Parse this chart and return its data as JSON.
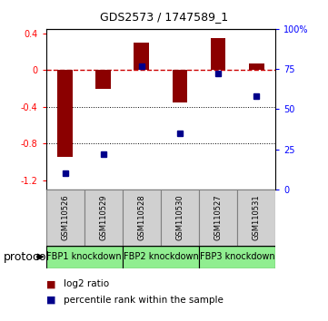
{
  "title": "GDS2573 / 1747589_1",
  "samples": [
    "GSM110526",
    "GSM110529",
    "GSM110528",
    "GSM110530",
    "GSM110527",
    "GSM110531"
  ],
  "log2_ratio": [
    -0.95,
    -0.2,
    0.3,
    -0.35,
    0.35,
    0.07
  ],
  "percentile_rank": [
    10,
    22,
    77,
    35,
    72,
    58
  ],
  "groups": [
    {
      "label": "FBP1 knockdown",
      "start": 0,
      "end": 1,
      "color": "#90ee90"
    },
    {
      "label": "FBP2 knockdown",
      "start": 2,
      "end": 3,
      "color": "#90ee90"
    },
    {
      "label": "FBP3 knockdown",
      "start": 4,
      "end": 5,
      "color": "#90ee90"
    }
  ],
  "ylim_left": [
    -1.3,
    0.45
  ],
  "ylim_right": [
    0,
    100
  ],
  "bar_color": "#8B0000",
  "dot_color": "#00008B",
  "hline_color": "#CC0000",
  "dotline1": -0.4,
  "dotline2": -0.8,
  "right_ticks": [
    0,
    25,
    50,
    75,
    100
  ],
  "right_tick_labels": [
    "0",
    "25",
    "50",
    "75",
    "100%"
  ],
  "left_ticks": [
    0.4,
    0.0,
    -0.4,
    -0.8,
    -1.2
  ],
  "left_tick_labels": [
    "0.4",
    "0",
    "-0.4",
    "-0.8",
    "-1.2"
  ],
  "sample_box_color": "#d0d0d0",
  "sample_box_edge": "#808080",
  "background_color": "#ffffff",
  "title_fontsize": 9,
  "tick_fontsize": 7,
  "sample_fontsize": 6,
  "group_fontsize": 7,
  "legend_fontsize": 7.5,
  "protocol_fontsize": 9
}
